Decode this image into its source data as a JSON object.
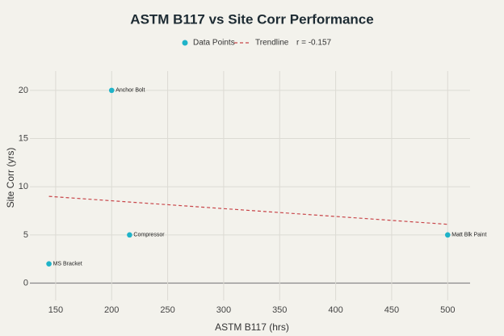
{
  "chart_data": {
    "type": "scatter",
    "title": "ASTM B117 vs Site Corr Performance",
    "x_label": "ASTM B117 (hrs)",
    "y_label": "Site Corr (yrs)",
    "series": [
      {
        "name": "Data Points",
        "color": "#1fb3c8",
        "x": [
          144,
          200,
          216,
          500
        ],
        "values": [
          2,
          20,
          5,
          5
        ],
        "labels": [
          "MS Bracket",
          "Anchor Bolt",
          "Compressor",
          "Matt Blk Paint"
        ]
      },
      {
        "name": "Trendline",
        "color": "#c8464a",
        "style": "dashed",
        "x": [
          144,
          500
        ],
        "values": [
          9.0,
          6.1
        ]
      }
    ],
    "annotation": "r = -0.157",
    "xlim": [
      127,
      520
    ],
    "ylim": [
      -1.8,
      22
    ],
    "xticks": [
      150,
      200,
      250,
      300,
      350,
      400,
      450,
      500
    ],
    "yticks": [
      0,
      5,
      10,
      15,
      20
    ],
    "grid": true
  }
}
